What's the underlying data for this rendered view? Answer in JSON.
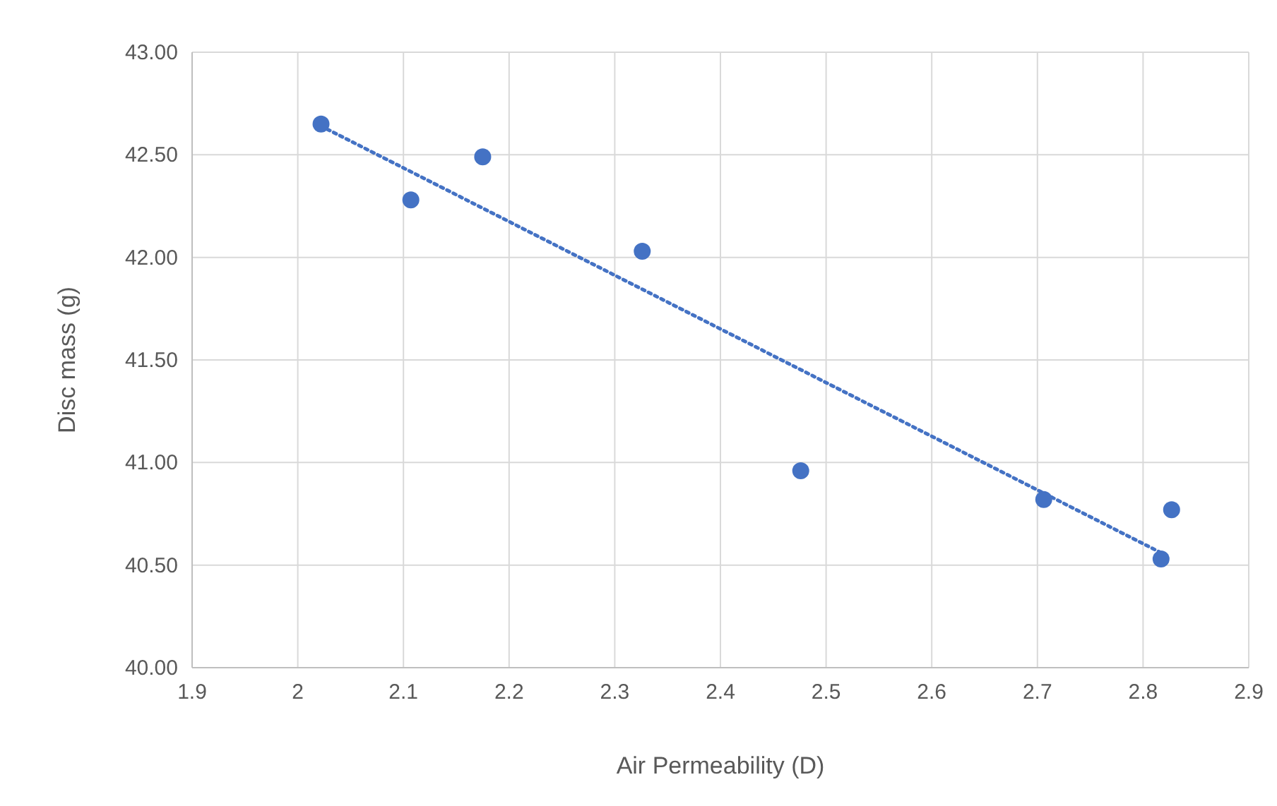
{
  "chart_data": {
    "type": "scatter",
    "xlabel": "Air Permeability (D)",
    "ylabel": "Disc mass (g)",
    "xlim": [
      1.9,
      2.9
    ],
    "xticks": [
      1.9,
      2,
      2.1,
      2.2,
      2.3,
      2.4,
      2.5,
      2.6,
      2.7,
      2.8,
      2.9
    ],
    "ylim": [
      40,
      43
    ],
    "yticks": [
      {
        "value": 40,
        "label": "40.00"
      },
      {
        "value": 40.5,
        "label": "40.50"
      },
      {
        "value": 41,
        "label": "41.00"
      },
      {
        "value": 41.5,
        "label": "41.50"
      },
      {
        "value": 42,
        "label": "42.00"
      },
      {
        "value": 42.5,
        "label": "42.50"
      },
      {
        "value": 43,
        "label": "43.00"
      }
    ],
    "grid": true,
    "series": [
      {
        "color": "#4472c4",
        "marker": "circle",
        "x": [
          2.022,
          2.107,
          2.175,
          2.326,
          2.476,
          2.706,
          2.827,
          2.817
        ],
        "values": [
          42.65,
          42.28,
          42.49,
          42.03,
          40.96,
          40.82,
          40.77,
          40.53
        ]
      },
      {
        "type": "line",
        "color": "#4472c4",
        "line_style": "dotted",
        "marker": "none",
        "x": [
          2.022,
          2.817
        ],
        "values": [
          42.64,
          40.56
        ]
      }
    ]
  }
}
